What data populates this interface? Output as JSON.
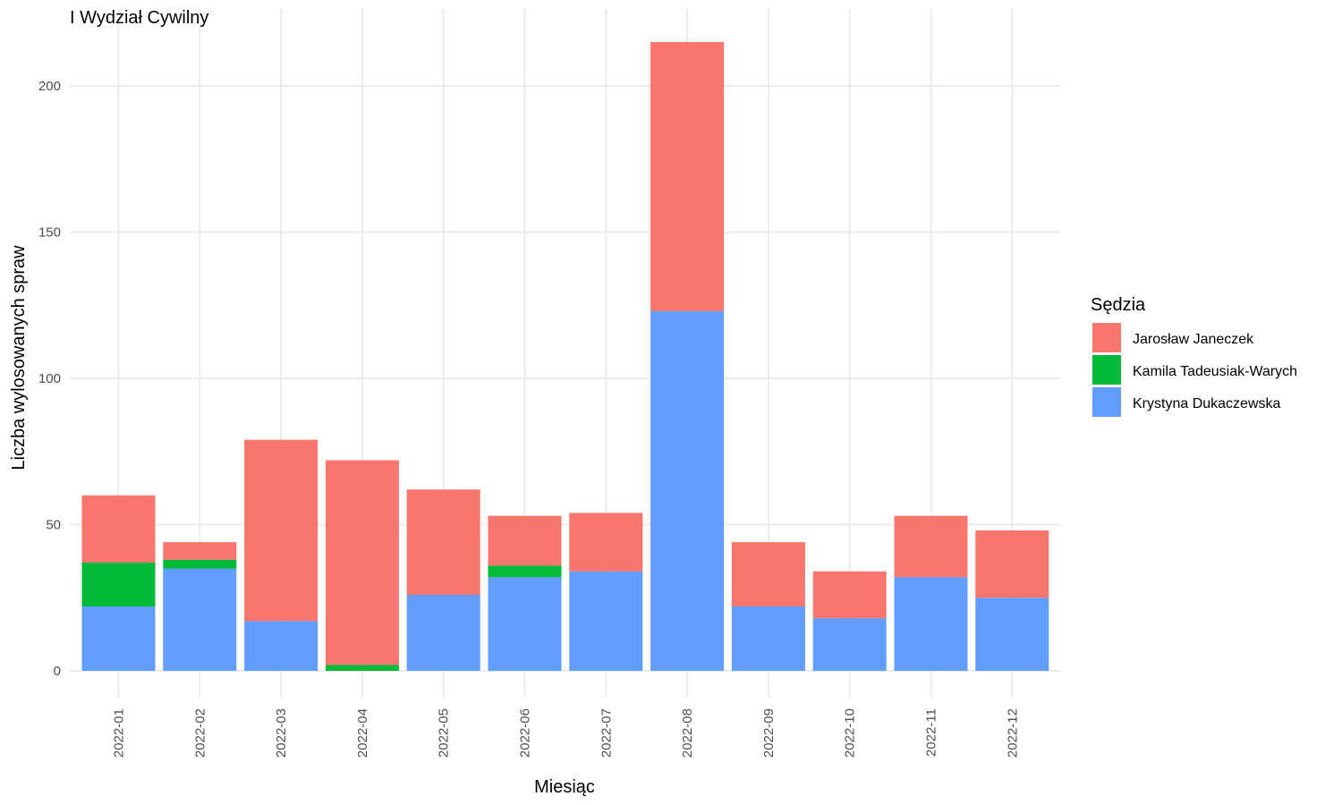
{
  "chart_data": {
    "type": "bar",
    "stacked": true,
    "title": "I Wydział Cywilny",
    "xlabel": "Miesiąc",
    "ylabel": "Liczba wylosowanych spraw",
    "categories": [
      "2022-01",
      "2022-02",
      "2022-03",
      "2022-04",
      "2022-05",
      "2022-06",
      "2022-07",
      "2022-08",
      "2022-09",
      "2022-10",
      "2022-11",
      "2022-12"
    ],
    "ylim": [
      0,
      225
    ],
    "yticks": [
      "0",
      "50",
      "100",
      "150",
      "200"
    ],
    "grid": true,
    "legend": {
      "title": "Sędzia",
      "position": "right"
    },
    "series": [
      {
        "name": "Krystyna Dukaczewska",
        "color": "#619CFF",
        "values": [
          22,
          35,
          17,
          0,
          26,
          32,
          34,
          123,
          22,
          18,
          32,
          25
        ]
      },
      {
        "name": "Kamila Tadeusiak-Warych",
        "color": "#00BA38",
        "values": [
          15,
          3,
          0,
          2,
          0,
          4,
          0,
          0,
          0,
          0,
          0,
          0
        ]
      },
      {
        "name": "Jarosław Janeczek",
        "color": "#F8766D",
        "values": [
          23,
          6,
          62,
          70,
          36,
          17,
          20,
          92,
          22,
          16,
          21,
          23
        ]
      }
    ],
    "legend_order": [
      "Jarosław Janeczek",
      "Kamila Tadeusiak-Warych",
      "Krystyna Dukaczewska"
    ]
  }
}
